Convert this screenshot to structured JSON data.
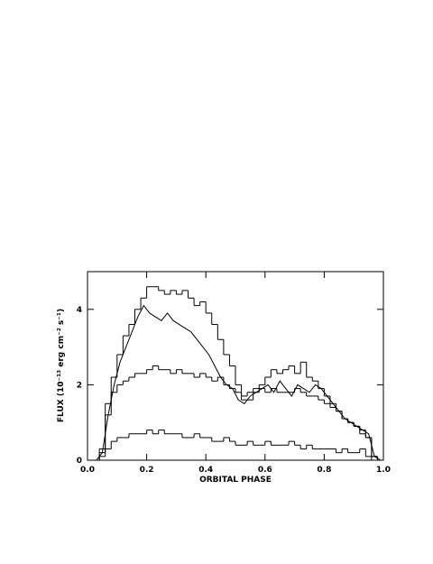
{
  "chart_data": {
    "type": "line",
    "xlabel": "ORBITAL PHASE",
    "ylabel": "FLUX (10⁻¹³ erg cm⁻² s⁻¹)",
    "xlim": [
      0,
      1
    ],
    "ylim": [
      0,
      5
    ],
    "xticks": [
      {
        "value": 0,
        "label": "0.0"
      },
      0.2,
      0.4,
      0.6,
      0.8,
      {
        "value": 1,
        "label": "1.0"
      }
    ],
    "yticks": [
      0,
      2,
      4
    ],
    "x": [
      0.01,
      0.03,
      0.05,
      0.07,
      0.09,
      0.11,
      0.13,
      0.15,
      0.17,
      0.19,
      0.21,
      0.23,
      0.25,
      0.27,
      0.29,
      0.31,
      0.33,
      0.35,
      0.37,
      0.39,
      0.41,
      0.43,
      0.45,
      0.47,
      0.49,
      0.51,
      0.53,
      0.55,
      0.57,
      0.59,
      0.61,
      0.63,
      0.65,
      0.67,
      0.69,
      0.71,
      0.73,
      0.75,
      0.77,
      0.79,
      0.81,
      0.83,
      0.85,
      0.87,
      0.89,
      0.91,
      0.93,
      0.95,
      0.97,
      0.99
    ],
    "series": [
      {
        "style": "step",
        "color": "#000000",
        "values": [
          0,
          0,
          0.3,
          1.5,
          2.2,
          2.8,
          3.3,
          3.6,
          4.0,
          4.3,
          4.6,
          4.6,
          4.5,
          4.4,
          4.5,
          4.4,
          4.5,
          4.3,
          4.1,
          4.2,
          3.9,
          3.6,
          3.2,
          2.8,
          2.5,
          2.0,
          1.6,
          1.6,
          1.8,
          2.0,
          2.2,
          2.4,
          2.3,
          2.4,
          2.5,
          2.3,
          2.6,
          2.2,
          2.1,
          1.9,
          1.7,
          1.5,
          1.3,
          1.1,
          1.0,
          0.9,
          0.8,
          0.6,
          0.1,
          0
        ]
      },
      {
        "style": "line",
        "color": "#000000",
        "values": [
          0,
          0,
          0.2,
          1.2,
          2.0,
          2.6,
          3.0,
          3.4,
          3.8,
          4.1,
          3.9,
          3.8,
          3.7,
          3.9,
          3.7,
          3.6,
          3.5,
          3.4,
          3.2,
          3.0,
          2.8,
          2.5,
          2.2,
          2.0,
          1.9,
          1.6,
          1.5,
          1.7,
          1.8,
          1.9,
          2.0,
          1.8,
          2.1,
          1.9,
          1.7,
          2.0,
          1.9,
          1.8,
          2.0,
          1.9,
          1.7,
          1.5,
          1.3,
          1.1,
          1.0,
          0.9,
          0.8,
          0.7,
          0.1,
          0
        ]
      },
      {
        "style": "step",
        "color": "#000000",
        "values": [
          0,
          0,
          0.2,
          1.2,
          1.8,
          2.0,
          2.1,
          2.2,
          2.3,
          2.3,
          2.4,
          2.5,
          2.4,
          2.4,
          2.3,
          2.4,
          2.3,
          2.3,
          2.2,
          2.3,
          2.2,
          2.1,
          2.2,
          2.0,
          1.9,
          1.8,
          1.7,
          1.8,
          1.9,
          1.9,
          1.8,
          1.9,
          1.8,
          1.8,
          1.8,
          1.9,
          1.8,
          1.7,
          1.7,
          1.6,
          1.5,
          1.4,
          1.3,
          1.1,
          1.0,
          0.9,
          0.7,
          0.6,
          0.1,
          0
        ]
      },
      {
        "style": "step",
        "color": "#000000",
        "values": [
          0,
          0,
          0.1,
          0.3,
          0.5,
          0.6,
          0.6,
          0.7,
          0.7,
          0.7,
          0.8,
          0.7,
          0.8,
          0.7,
          0.7,
          0.7,
          0.6,
          0.6,
          0.7,
          0.6,
          0.6,
          0.5,
          0.5,
          0.6,
          0.5,
          0.4,
          0.4,
          0.5,
          0.4,
          0.4,
          0.5,
          0.4,
          0.4,
          0.4,
          0.5,
          0.4,
          0.3,
          0.4,
          0.3,
          0.3,
          0.3,
          0.3,
          0.2,
          0.3,
          0.2,
          0.2,
          0.3,
          0.1,
          0,
          0
        ]
      }
    ]
  }
}
